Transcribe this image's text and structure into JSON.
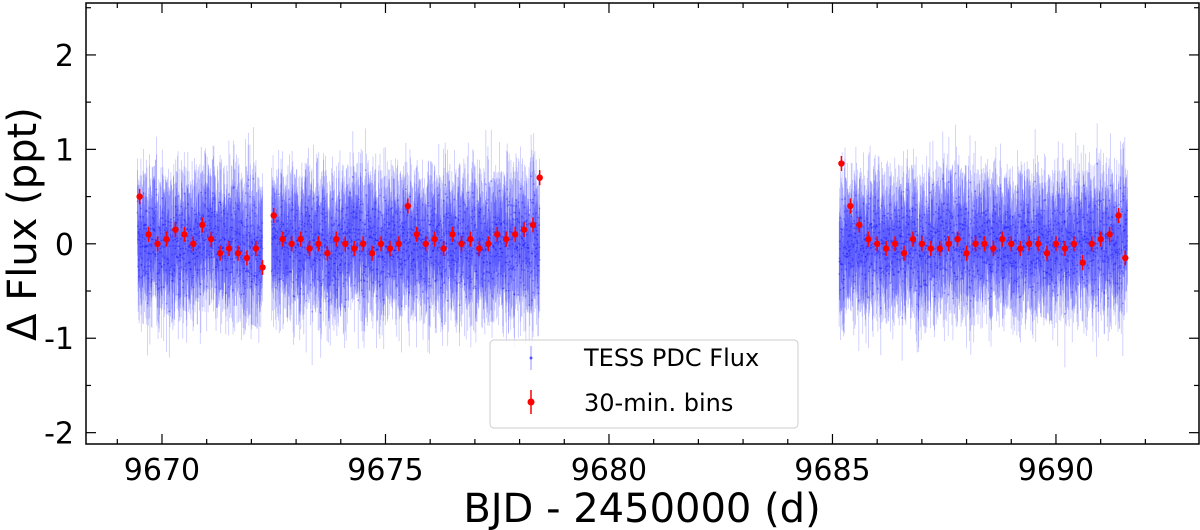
{
  "chart_data": {
    "type": "scatter",
    "xlabel": "BJD - 2450000 (d)",
    "ylabel": "Δ Flux (ppt)",
    "xlim": [
      9668.3,
      9693.2
    ],
    "ylim": [
      -2.12,
      2.55
    ],
    "xticks": [
      9670,
      9675,
      9680,
      9685,
      9690
    ],
    "xtick_labels": [
      "9670",
      "9675",
      "9680",
      "9685",
      "9690"
    ],
    "yticks": [
      2,
      1,
      0,
      -1,
      -2
    ],
    "ytick_labels": [
      "2",
      "1",
      "0",
      "-1",
      "-2"
    ],
    "legend_position": "bottom-center",
    "series": [
      {
        "name": "TESS PDC Flux",
        "color": "#0000ff",
        "style": "points with error bars, semi-transparent",
        "segments": [
          [
            9669.45,
            9672.25
          ],
          [
            9672.45,
            9678.45
          ],
          [
            9685.15,
            9691.6
          ]
        ],
        "typical_scatter_ppt": 0.45,
        "typical_error_ppt": 0.5
      },
      {
        "name": "30-min. bins",
        "color": "#ff0000",
        "style": "points with error bars",
        "x": [
          9669.5,
          9669.7,
          9669.9,
          9670.1,
          9670.3,
          9670.5,
          9670.7,
          9670.9,
          9671.1,
          9671.3,
          9671.5,
          9671.7,
          9671.9,
          9672.1,
          9672.25,
          9672.5,
          9672.7,
          9672.9,
          9673.1,
          9673.3,
          9673.5,
          9673.7,
          9673.9,
          9674.1,
          9674.3,
          9674.5,
          9674.7,
          9674.9,
          9675.1,
          9675.3,
          9675.5,
          9675.7,
          9675.9,
          9676.1,
          9676.3,
          9676.5,
          9676.7,
          9676.9,
          9677.1,
          9677.3,
          9677.5,
          9677.7,
          9677.9,
          9678.1,
          9678.3,
          9678.45,
          9685.2,
          9685.4,
          9685.6,
          9685.8,
          9686.0,
          9686.2,
          9686.4,
          9686.6,
          9686.8,
          9687.0,
          9687.2,
          9687.4,
          9687.6,
          9687.8,
          9688.0,
          9688.2,
          9688.4,
          9688.6,
          9688.8,
          9689.0,
          9689.2,
          9689.4,
          9689.6,
          9689.8,
          9690.0,
          9690.2,
          9690.4,
          9690.6,
          9690.8,
          9691.0,
          9691.2,
          9691.4,
          9691.55
        ],
        "y": [
          0.5,
          0.1,
          0.0,
          0.05,
          0.15,
          0.1,
          0.0,
          0.2,
          0.05,
          -0.1,
          -0.05,
          -0.1,
          -0.15,
          -0.05,
          -0.25,
          0.3,
          0.05,
          0.0,
          0.05,
          -0.05,
          0.0,
          -0.1,
          0.05,
          0.0,
          -0.05,
          0.0,
          -0.1,
          0.0,
          -0.05,
          0.0,
          0.4,
          0.1,
          0.0,
          0.05,
          -0.05,
          0.1,
          0.0,
          0.05,
          -0.05,
          0.0,
          0.1,
          0.05,
          0.1,
          0.15,
          0.2,
          0.7,
          0.85,
          0.4,
          0.2,
          0.05,
          0.0,
          -0.05,
          0.0,
          -0.1,
          0.05,
          0.0,
          -0.05,
          -0.05,
          0.0,
          0.05,
          -0.1,
          0.0,
          0.0,
          -0.05,
          0.05,
          0.0,
          -0.05,
          0.0,
          0.0,
          -0.1,
          0.0,
          -0.05,
          0.0,
          -0.2,
          0.0,
          0.05,
          0.1,
          0.3,
          -0.15
        ],
        "error": 0.08
      }
    ]
  }
}
